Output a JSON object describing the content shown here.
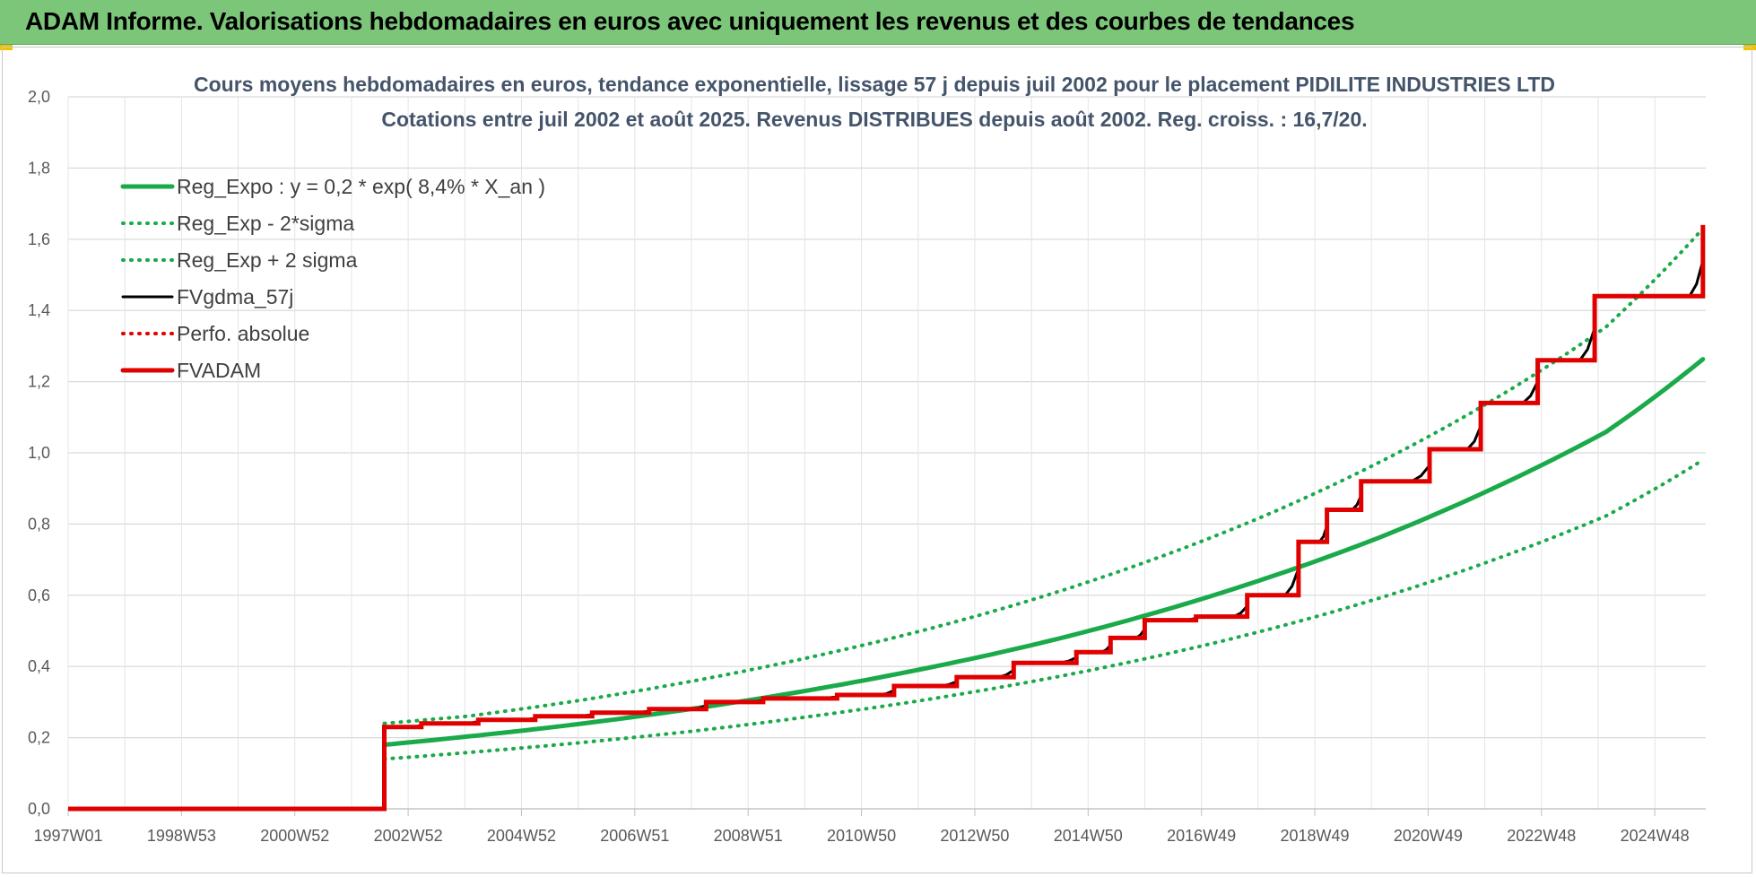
{
  "header": {
    "title": "ADAM Informe. Valorisations hebdomadaires en euros avec uniquement les revenus et des courbes de tendances"
  },
  "chart_data": {
    "type": "line",
    "title_lines": [
      "Cours moyens hebdomadaires en euros, tendance exponentielle, lissage 57 j depuis juil 2002 pour le placement PIDILITE INDUSTRIES LTD",
      "Cotations entre juil 2002 et août 2025. Revenus DISTRIBUES depuis août 2002. Reg. croiss. : 16,7/20."
    ],
    "x_ticks": [
      "1997W01",
      "1998W53",
      "2000W52",
      "2002W52",
      "2004W52",
      "2006W51",
      "2008W51",
      "2010W50",
      "2012W50",
      "2014W50",
      "2016W49",
      "2018W49",
      "2020W49",
      "2022W48",
      "2024W48"
    ],
    "y_ticks": [
      "0,0",
      "0,2",
      "0,4",
      "0,6",
      "0,8",
      "1,0",
      "1,2",
      "1,4",
      "1,6",
      "1,8",
      "2,0"
    ],
    "xlim": [
      1997.0,
      2025.75
    ],
    "ylim": [
      0,
      2.0
    ],
    "grid": true,
    "legend_position": "top-left",
    "legend": [
      {
        "label": "Reg_Expo : y = 0,2 * exp( 8,4% *  X_an )",
        "color": "#1aaa4a",
        "style": "solid-thick"
      },
      {
        "label": "Reg_Exp - 2*sigma",
        "color": "#1aaa4a",
        "style": "dotted"
      },
      {
        "label": "Reg_Exp + 2 sigma",
        "color": "#1aaa4a",
        "style": "dotted"
      },
      {
        "label": "FVgdma_57j",
        "color": "#000000",
        "style": "solid"
      },
      {
        "label": "Perfo. absolue",
        "color": "#e00000",
        "style": "dotted"
      },
      {
        "label": "FVADAM",
        "color": "#e00000",
        "style": "solid-thick"
      }
    ],
    "series": [
      {
        "name": "Reg_Expo : y = 0,2 * exp( 8,4% *  X_an )",
        "color": "#1aaa4a",
        "x": [
          2002.55,
          2004,
          2006,
          2008,
          2010,
          2012,
          2014,
          2016,
          2018,
          2020,
          2022,
          2024,
          2025.7
        ],
        "values": [
          0.18,
          0.203,
          0.239,
          0.282,
          0.333,
          0.393,
          0.463,
          0.547,
          0.646,
          0.761,
          0.899,
          1.059,
          1.263
        ]
      },
      {
        "name": "Reg_Exp - 2*sigma",
        "color": "#1aaa4a",
        "x": [
          2002.55,
          2004,
          2006,
          2008,
          2010,
          2012,
          2014,
          2016,
          2018,
          2020,
          2022,
          2024,
          2025.7
        ],
        "values": [
          0.14,
          0.158,
          0.186,
          0.219,
          0.259,
          0.305,
          0.36,
          0.425,
          0.501,
          0.591,
          0.698,
          0.823,
          0.98
        ]
      },
      {
        "name": "Reg_Exp + 2 sigma",
        "color": "#1aaa4a",
        "x": [
          2002.55,
          2004,
          2006,
          2008,
          2010,
          2012,
          2014,
          2016,
          2018,
          2020,
          2022,
          2024,
          2025.7
        ],
        "values": [
          0.24,
          0.26,
          0.305,
          0.36,
          0.425,
          0.501,
          0.591,
          0.698,
          0.823,
          0.972,
          1.147,
          1.354,
          1.63
        ]
      },
      {
        "name": "FVADAM",
        "color": "#e00000",
        "x": [
          1997.0,
          2002.55,
          2002.55,
          2003.2,
          2003.2,
          2004.2,
          2004.2,
          2005.2,
          2005.2,
          2006.2,
          2006.2,
          2007.2,
          2007.2,
          2008.2,
          2008.2,
          2009.2,
          2009.2,
          2010.5,
          2010.5,
          2011.5,
          2011.5,
          2012.6,
          2012.6,
          2013.6,
          2013.6,
          2014.7,
          2014.7,
          2015.3,
          2015.3,
          2015.9,
          2015.9,
          2016.8,
          2016.8,
          2017.7,
          2017.7,
          2018.6,
          2018.6,
          2019.1,
          2019.1,
          2019.7,
          2019.7,
          2020.9,
          2020.9,
          2021.8,
          2021.8,
          2022.8,
          2022.8,
          2023.8,
          2023.8,
          2024.8,
          2024.8,
          2025.7,
          2025.7
        ],
        "values": [
          0.0,
          0.0,
          0.23,
          0.23,
          0.24,
          0.24,
          0.25,
          0.25,
          0.26,
          0.26,
          0.27,
          0.27,
          0.28,
          0.28,
          0.3,
          0.3,
          0.31,
          0.31,
          0.32,
          0.32,
          0.345,
          0.345,
          0.37,
          0.37,
          0.41,
          0.41,
          0.44,
          0.44,
          0.48,
          0.48,
          0.53,
          0.53,
          0.54,
          0.54,
          0.6,
          0.6,
          0.75,
          0.75,
          0.84,
          0.84,
          0.92,
          0.92,
          1.01,
          1.01,
          1.14,
          1.14,
          1.26,
          1.26,
          1.44,
          1.44,
          1.44,
          1.44,
          1.64
        ]
      }
    ]
  }
}
